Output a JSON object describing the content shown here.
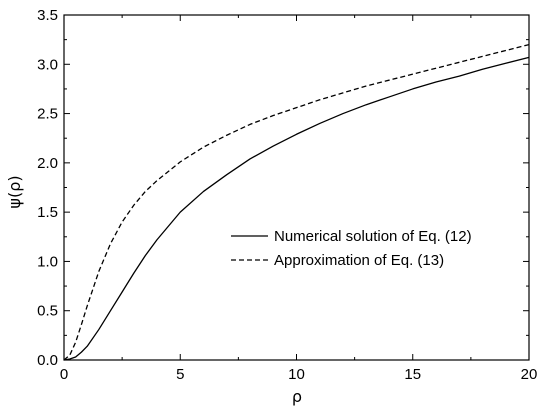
{
  "chart_data": {
    "type": "line",
    "xlabel": "ρ",
    "ylabel": "ψ(ρ)",
    "xlim": [
      0,
      20
    ],
    "ylim": [
      0,
      3.5
    ],
    "xticks": [
      0,
      5,
      10,
      15,
      20
    ],
    "yticks": [
      0.0,
      0.5,
      1.0,
      1.5,
      2.0,
      2.5,
      3.0,
      3.5
    ],
    "xtick_labels": [
      "0",
      "5",
      "10",
      "15",
      "20"
    ],
    "ytick_labels": [
      "0.0",
      "0.5",
      "1.0",
      "1.5",
      "2.0",
      "2.5",
      "3.0",
      "3.5"
    ],
    "grid": false,
    "legend_position": "center-right",
    "series": [
      {
        "name": "Numerical solution of Eq. (12)",
        "style": "solid",
        "color": "#000000",
        "x": [
          0,
          0.25,
          0.5,
          0.75,
          1,
          1.5,
          2,
          2.5,
          3,
          3.5,
          4,
          5,
          6,
          7,
          8,
          9,
          10,
          11,
          12,
          13,
          14,
          15,
          16,
          17,
          18,
          19,
          20
        ],
        "y": [
          0,
          0.01,
          0.03,
          0.08,
          0.14,
          0.31,
          0.5,
          0.69,
          0.88,
          1.06,
          1.22,
          1.5,
          1.71,
          1.88,
          2.04,
          2.17,
          2.29,
          2.4,
          2.5,
          2.59,
          2.67,
          2.75,
          2.82,
          2.88,
          2.95,
          3.01,
          3.07
        ]
      },
      {
        "name": "Approximation of Eq. (13)",
        "style": "dashed",
        "color": "#000000",
        "x": [
          0,
          0.25,
          0.5,
          0.75,
          1,
          1.5,
          2,
          2.5,
          3,
          3.5,
          4,
          5,
          6,
          7,
          8,
          9,
          10,
          11,
          12,
          13,
          14,
          15,
          16,
          17,
          18,
          19,
          20
        ],
        "y": [
          0,
          0.05,
          0.18,
          0.36,
          0.55,
          0.9,
          1.18,
          1.4,
          1.57,
          1.71,
          1.82,
          2.01,
          2.16,
          2.28,
          2.39,
          2.48,
          2.56,
          2.64,
          2.71,
          2.78,
          2.84,
          2.9,
          2.96,
          3.02,
          3.08,
          3.14,
          3.2
        ]
      }
    ]
  }
}
